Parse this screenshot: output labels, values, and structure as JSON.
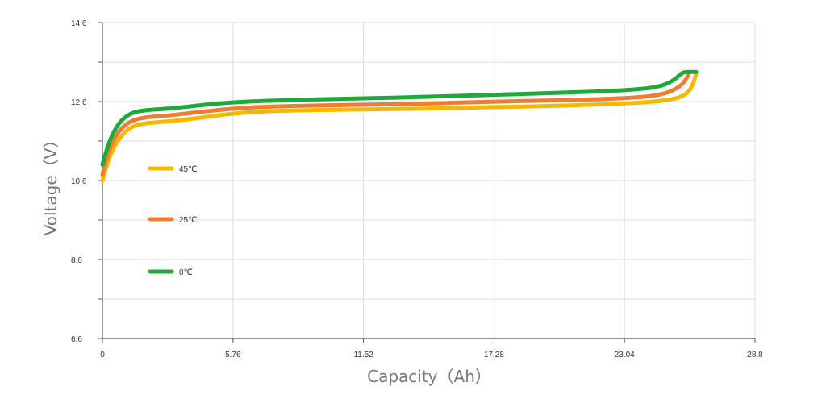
{
  "chart_data": {
    "type": "line",
    "xlabel": "Capacity（Ah）",
    "ylabel": "Voltage（V）",
    "xlim": [
      0,
      28.8
    ],
    "ylim": [
      6.6,
      14.6
    ],
    "x_ticks": [
      "0",
      "5.76",
      "11.52",
      "17.28",
      "23.04",
      "28.8"
    ],
    "y_ticks": [
      "6.6",
      "8.6",
      "10.6",
      "12.6",
      "14.6"
    ],
    "grid": "vertical and horizontal",
    "legend_position": "left, inside plot",
    "series": [
      {
        "name": "45℃",
        "color": "#F5B800",
        "points": [
          [
            0,
            10.6
          ],
          [
            0.3,
            11.2
          ],
          [
            0.7,
            11.65
          ],
          [
            1.2,
            11.95
          ],
          [
            1.8,
            12.05
          ],
          [
            3,
            12.1
          ],
          [
            4.5,
            12.2
          ],
          [
            5.76,
            12.3
          ],
          [
            7.5,
            12.37
          ],
          [
            11.52,
            12.4
          ],
          [
            14.4,
            12.42
          ],
          [
            17.28,
            12.46
          ],
          [
            20.2,
            12.49
          ],
          [
            23.04,
            12.55
          ],
          [
            24.5,
            12.6
          ],
          [
            25.5,
            12.7
          ],
          [
            25.9,
            12.85
          ],
          [
            26.1,
            13.1
          ],
          [
            26.2,
            13.3
          ]
        ]
      },
      {
        "name": "25℃",
        "color": "#ED7D31",
        "points": [
          [
            0,
            10.75
          ],
          [
            0.3,
            11.4
          ],
          [
            0.7,
            11.85
          ],
          [
            1.2,
            12.1
          ],
          [
            1.8,
            12.2
          ],
          [
            3,
            12.25
          ],
          [
            4.5,
            12.35
          ],
          [
            5.76,
            12.42
          ],
          [
            7.5,
            12.48
          ],
          [
            11.52,
            12.52
          ],
          [
            14.4,
            12.55
          ],
          [
            17.28,
            12.6
          ],
          [
            20.2,
            12.63
          ],
          [
            23.04,
            12.68
          ],
          [
            24.5,
            12.75
          ],
          [
            25.3,
            12.9
          ],
          [
            25.7,
            13.1
          ],
          [
            25.9,
            13.32
          ]
        ]
      },
      {
        "name": "0℃",
        "color": "#1DAA3A",
        "points": [
          [
            0,
            11.0
          ],
          [
            0.3,
            11.6
          ],
          [
            0.7,
            12.05
          ],
          [
            1.2,
            12.3
          ],
          [
            1.8,
            12.38
          ],
          [
            3,
            12.42
          ],
          [
            4.5,
            12.52
          ],
          [
            5.76,
            12.58
          ],
          [
            7.5,
            12.63
          ],
          [
            11.52,
            12.68
          ],
          [
            14.4,
            12.72
          ],
          [
            17.28,
            12.77
          ],
          [
            20.2,
            12.82
          ],
          [
            23.04,
            12.88
          ],
          [
            24.5,
            12.96
          ],
          [
            25.2,
            13.12
          ],
          [
            25.6,
            13.35
          ],
          [
            26.0,
            13.35
          ],
          [
            26.2,
            13.35
          ]
        ]
      }
    ]
  }
}
